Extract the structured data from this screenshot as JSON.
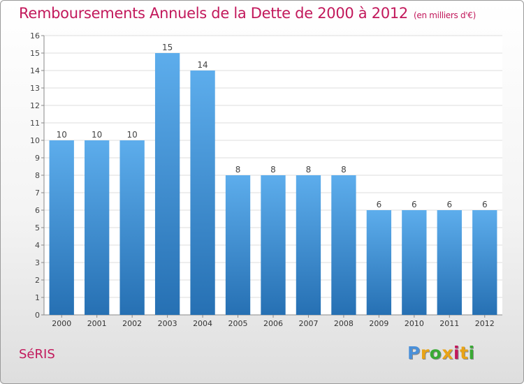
{
  "chart_data": {
    "type": "bar",
    "title": "Remboursements Annuels de la Dette de 2000 à 2012",
    "subtitle": "(en milliers d'€)",
    "categories": [
      "2000",
      "2001",
      "2002",
      "2003",
      "2004",
      "2005",
      "2006",
      "2007",
      "2008",
      "2009",
      "2010",
      "2011",
      "2012"
    ],
    "values": [
      10,
      10,
      10,
      15,
      14,
      8,
      8,
      8,
      8,
      6,
      6,
      6,
      6
    ],
    "ylim": [
      0,
      16
    ],
    "yticks": [
      0,
      1,
      2,
      3,
      4,
      5,
      6,
      7,
      8,
      9,
      10,
      11,
      12,
      13,
      14,
      15,
      16
    ],
    "grid": true,
    "bar_color": "#3d8fd1"
  },
  "footer": {
    "city": "SéRIS",
    "logo": "Proxiti",
    "logo_colors": [
      "#4a90d9",
      "#e8a317",
      "#3aaa35",
      "#e8a317",
      "#c2185b",
      "#e8a317",
      "#3aaa35"
    ]
  }
}
